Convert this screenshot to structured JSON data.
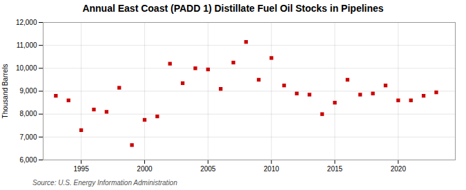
{
  "chart_data": {
    "type": "scatter",
    "title": "Annual East Coast (PADD 1) Distillate Fuel Oil Stocks in Pipelines",
    "ylabel": "Thousand Barrels",
    "source": "Source: U.S. Energy Information Administration",
    "x": [
      1993,
      1994,
      1995,
      1996,
      1997,
      1998,
      1999,
      2000,
      2001,
      2002,
      2003,
      2004,
      2005,
      2006,
      2007,
      2008,
      2009,
      2010,
      2011,
      2012,
      2013,
      2014,
      2015,
      2016,
      2017,
      2018,
      2019,
      2020,
      2021,
      2022,
      2023
    ],
    "values": [
      8800,
      8600,
      7300,
      8200,
      8100,
      9150,
      6650,
      7750,
      7900,
      10200,
      9350,
      10000,
      9950,
      9100,
      10250,
      11150,
      9500,
      10450,
      9250,
      8900,
      8850,
      8000,
      8500,
      9500,
      8850,
      8900,
      9250,
      8600,
      8600,
      8800,
      8950
    ],
    "color": "#cc0000",
    "marker": "square",
    "xlim": [
      1992,
      2024.5
    ],
    "xticks": [
      1995,
      2000,
      2005,
      2010,
      2015,
      2020
    ],
    "ylim": [
      6000,
      12000
    ],
    "yticks": [
      {
        "value": 6000,
        "label": "6,000"
      },
      {
        "value": 7000,
        "label": "7,000"
      },
      {
        "value": 8000,
        "label": "8,000"
      },
      {
        "value": 9000,
        "label": "9,000"
      },
      {
        "value": 10000,
        "label": "10,000"
      },
      {
        "value": 11000,
        "label": "11,000"
      },
      {
        "value": 12000,
        "label": "12,000"
      }
    ],
    "grid": true
  }
}
